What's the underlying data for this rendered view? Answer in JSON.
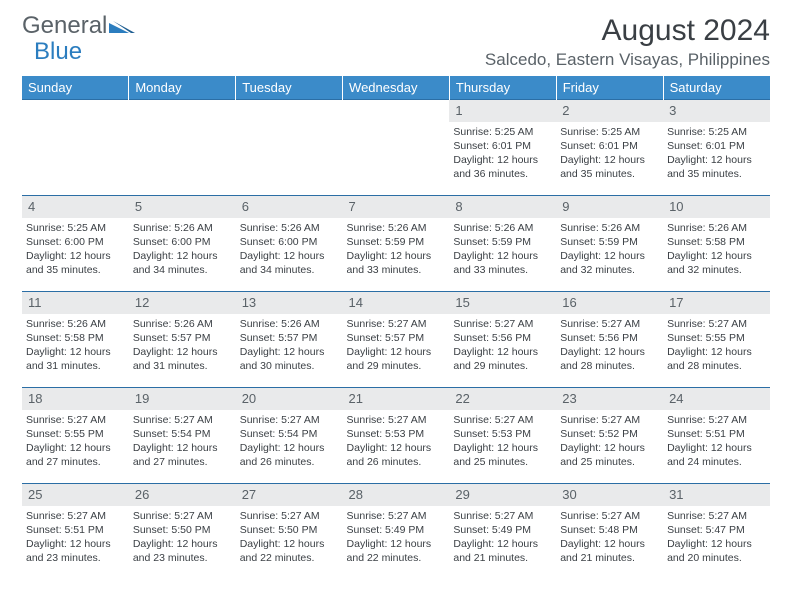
{
  "logo": {
    "word1": "General",
    "word2": "Blue"
  },
  "title": "August 2024",
  "location": "Salcedo, Eastern Visayas, Philippines",
  "colors": {
    "header_bg": "#3b8bc9",
    "header_text": "#ffffff",
    "row_border": "#2b6ea5",
    "daynum_bg": "#e9eaeb",
    "body_text": "#3a3f44",
    "muted_text": "#5a6268",
    "logo_blue": "#2b7dbf"
  },
  "day_headers": [
    "Sunday",
    "Monday",
    "Tuesday",
    "Wednesday",
    "Thursday",
    "Friday",
    "Saturday"
  ],
  "weeks": [
    [
      null,
      null,
      null,
      null,
      {
        "n": "1",
        "sr": "5:25 AM",
        "ss": "6:01 PM",
        "dl": "12 hours and 36 minutes."
      },
      {
        "n": "2",
        "sr": "5:25 AM",
        "ss": "6:01 PM",
        "dl": "12 hours and 35 minutes."
      },
      {
        "n": "3",
        "sr": "5:25 AM",
        "ss": "6:01 PM",
        "dl": "12 hours and 35 minutes."
      }
    ],
    [
      {
        "n": "4",
        "sr": "5:25 AM",
        "ss": "6:00 PM",
        "dl": "12 hours and 35 minutes."
      },
      {
        "n": "5",
        "sr": "5:26 AM",
        "ss": "6:00 PM",
        "dl": "12 hours and 34 minutes."
      },
      {
        "n": "6",
        "sr": "5:26 AM",
        "ss": "6:00 PM",
        "dl": "12 hours and 34 minutes."
      },
      {
        "n": "7",
        "sr": "5:26 AM",
        "ss": "5:59 PM",
        "dl": "12 hours and 33 minutes."
      },
      {
        "n": "8",
        "sr": "5:26 AM",
        "ss": "5:59 PM",
        "dl": "12 hours and 33 minutes."
      },
      {
        "n": "9",
        "sr": "5:26 AM",
        "ss": "5:59 PM",
        "dl": "12 hours and 32 minutes."
      },
      {
        "n": "10",
        "sr": "5:26 AM",
        "ss": "5:58 PM",
        "dl": "12 hours and 32 minutes."
      }
    ],
    [
      {
        "n": "11",
        "sr": "5:26 AM",
        "ss": "5:58 PM",
        "dl": "12 hours and 31 minutes."
      },
      {
        "n": "12",
        "sr": "5:26 AM",
        "ss": "5:57 PM",
        "dl": "12 hours and 31 minutes."
      },
      {
        "n": "13",
        "sr": "5:26 AM",
        "ss": "5:57 PM",
        "dl": "12 hours and 30 minutes."
      },
      {
        "n": "14",
        "sr": "5:27 AM",
        "ss": "5:57 PM",
        "dl": "12 hours and 29 minutes."
      },
      {
        "n": "15",
        "sr": "5:27 AM",
        "ss": "5:56 PM",
        "dl": "12 hours and 29 minutes."
      },
      {
        "n": "16",
        "sr": "5:27 AM",
        "ss": "5:56 PM",
        "dl": "12 hours and 28 minutes."
      },
      {
        "n": "17",
        "sr": "5:27 AM",
        "ss": "5:55 PM",
        "dl": "12 hours and 28 minutes."
      }
    ],
    [
      {
        "n": "18",
        "sr": "5:27 AM",
        "ss": "5:55 PM",
        "dl": "12 hours and 27 minutes."
      },
      {
        "n": "19",
        "sr": "5:27 AM",
        "ss": "5:54 PM",
        "dl": "12 hours and 27 minutes."
      },
      {
        "n": "20",
        "sr": "5:27 AM",
        "ss": "5:54 PM",
        "dl": "12 hours and 26 minutes."
      },
      {
        "n": "21",
        "sr": "5:27 AM",
        "ss": "5:53 PM",
        "dl": "12 hours and 26 minutes."
      },
      {
        "n": "22",
        "sr": "5:27 AM",
        "ss": "5:53 PM",
        "dl": "12 hours and 25 minutes."
      },
      {
        "n": "23",
        "sr": "5:27 AM",
        "ss": "5:52 PM",
        "dl": "12 hours and 25 minutes."
      },
      {
        "n": "24",
        "sr": "5:27 AM",
        "ss": "5:51 PM",
        "dl": "12 hours and 24 minutes."
      }
    ],
    [
      {
        "n": "25",
        "sr": "5:27 AM",
        "ss": "5:51 PM",
        "dl": "12 hours and 23 minutes."
      },
      {
        "n": "26",
        "sr": "5:27 AM",
        "ss": "5:50 PM",
        "dl": "12 hours and 23 minutes."
      },
      {
        "n": "27",
        "sr": "5:27 AM",
        "ss": "5:50 PM",
        "dl": "12 hours and 22 minutes."
      },
      {
        "n": "28",
        "sr": "5:27 AM",
        "ss": "5:49 PM",
        "dl": "12 hours and 22 minutes."
      },
      {
        "n": "29",
        "sr": "5:27 AM",
        "ss": "5:49 PM",
        "dl": "12 hours and 21 minutes."
      },
      {
        "n": "30",
        "sr": "5:27 AM",
        "ss": "5:48 PM",
        "dl": "12 hours and 21 minutes."
      },
      {
        "n": "31",
        "sr": "5:27 AM",
        "ss": "5:47 PM",
        "dl": "12 hours and 20 minutes."
      }
    ]
  ],
  "labels": {
    "sunrise": "Sunrise:",
    "sunset": "Sunset:",
    "daylight": "Daylight:"
  }
}
